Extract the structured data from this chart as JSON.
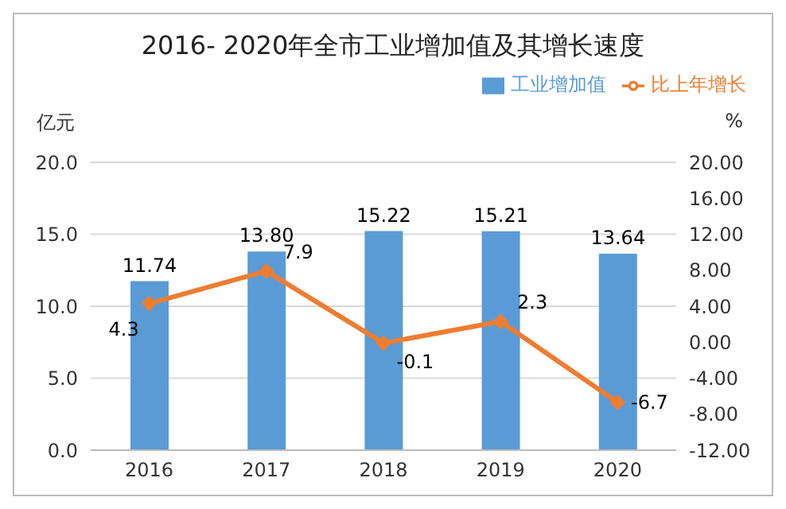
{
  "chart_data": {
    "type": "bar",
    "title": "2016- 2020年全市工业增加值及其增长速度",
    "ylabel": "亿元",
    "y2label": "%",
    "categories": [
      "2016",
      "2017",
      "2018",
      "2019",
      "2020"
    ],
    "series": [
      {
        "name": "工业增加值",
        "color": "#5b9bd5",
        "values": [
          11.74,
          13.8,
          15.22,
          15.21,
          13.64
        ],
        "value_labels": [
          "11.74",
          "13.80",
          "15.22",
          "15.21",
          "13.64"
        ]
      },
      {
        "name": "比上年增长",
        "type": "line",
        "axis": "y2",
        "color": "#ed7d31",
        "marker": "diamond",
        "values": [
          4.3,
          7.9,
          -0.1,
          2.3,
          -6.7
        ],
        "value_labels": [
          "4.3",
          "7.9",
          "-0.1",
          "2.3",
          "-6.7"
        ]
      }
    ],
    "ylim": [
      0,
      20
    ],
    "yticks": [
      {
        "value": 0,
        "label": "0.0"
      },
      {
        "value": 5,
        "label": "5.0"
      },
      {
        "value": 10,
        "label": "10.0"
      },
      {
        "value": 15,
        "label": "15.0"
      },
      {
        "value": 20,
        "label": "20.0"
      }
    ],
    "y2lim": [
      -12,
      20
    ],
    "y2ticks": [
      {
        "value": -12,
        "label": "-12.00"
      },
      {
        "value": -8,
        "label": "-8.00"
      },
      {
        "value": -4,
        "label": "-4.00"
      },
      {
        "value": 0,
        "label": "0.00"
      },
      {
        "value": 4,
        "label": "4.00"
      },
      {
        "value": 8,
        "label": "8.00"
      },
      {
        "value": 12,
        "label": "12.00"
      },
      {
        "value": 16,
        "label": "16.00"
      },
      {
        "value": 20,
        "label": "20.00"
      }
    ],
    "grid": "y",
    "legend": "top right"
  }
}
